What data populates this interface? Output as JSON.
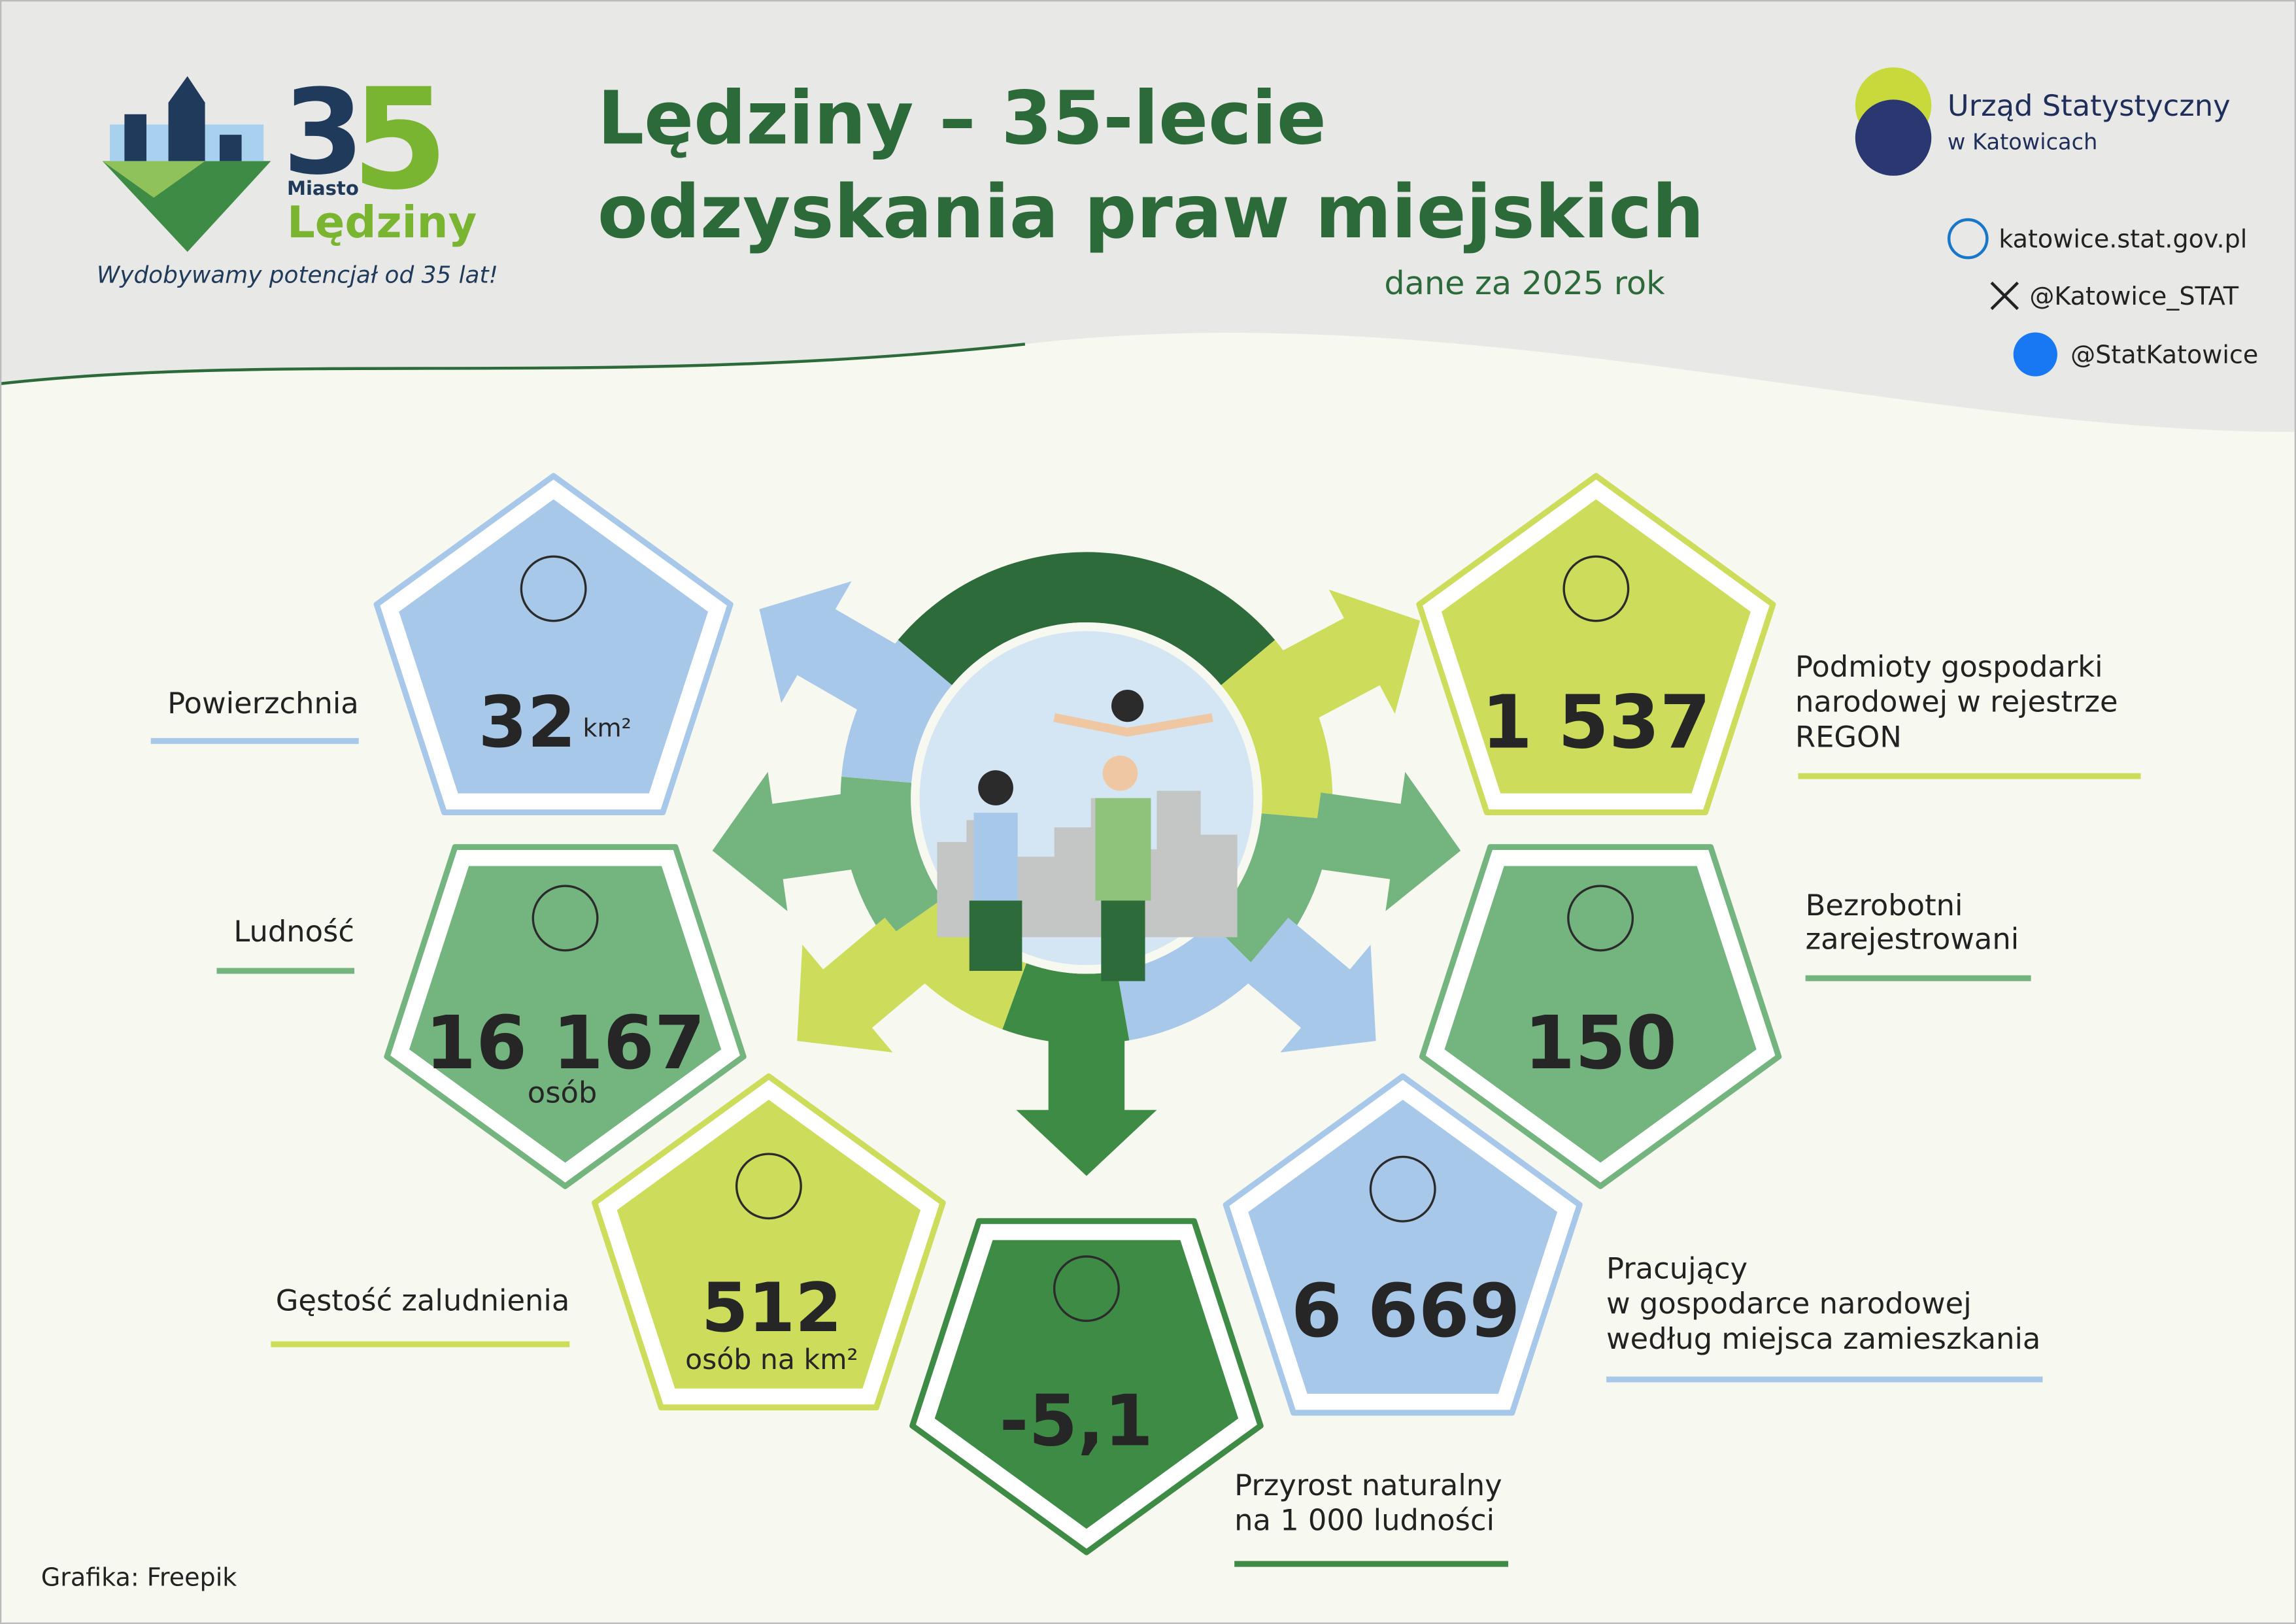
{
  "logo": {
    "digit1": "3",
    "digit2": "5",
    "miasto": "Miasto",
    "name": "Lędziny",
    "tagline": "Wydobywamy potencjał od 35 lat!"
  },
  "header": {
    "title": [
      "Lędziny – 35-lecie",
      "odzyskania praw miejskich"
    ],
    "subtitle": "dane za 2025 rok"
  },
  "office": {
    "name": "Urząd Statystyczny",
    "city": "w Katowicach"
  },
  "contacts": [
    "katowice.stat.gov.pl",
    "@Katowice_STAT",
    "@StatKatowice"
  ],
  "stats": [
    {
      "label": [
        "Powierzchnia"
      ],
      "value": "32",
      "unit": "km²"
    },
    {
      "label": [
        "Ludność"
      ],
      "value": "16 167",
      "unit": "osób"
    },
    {
      "label": [
        "Gęstość zaludnienia"
      ],
      "value": "512",
      "unit": "osób na km²"
    },
    {
      "label": [
        "Przyrost naturalny",
        "na 1 000 ludności"
      ],
      "value": "-5,1"
    },
    {
      "label": [
        "Pracujący",
        "w gospodarce narodowej",
        "według miejsca zamieszkania"
      ],
      "value": "6 669"
    },
    {
      "label": [
        "Bezrobotni",
        "zarejestrowani"
      ],
      "value": "150"
    },
    {
      "label": [
        "Podmioty gospodarki",
        "narodowej w rejestrze",
        "REGON"
      ],
      "value": "1 537"
    }
  ],
  "credit": "Grafika: Freepik"
}
